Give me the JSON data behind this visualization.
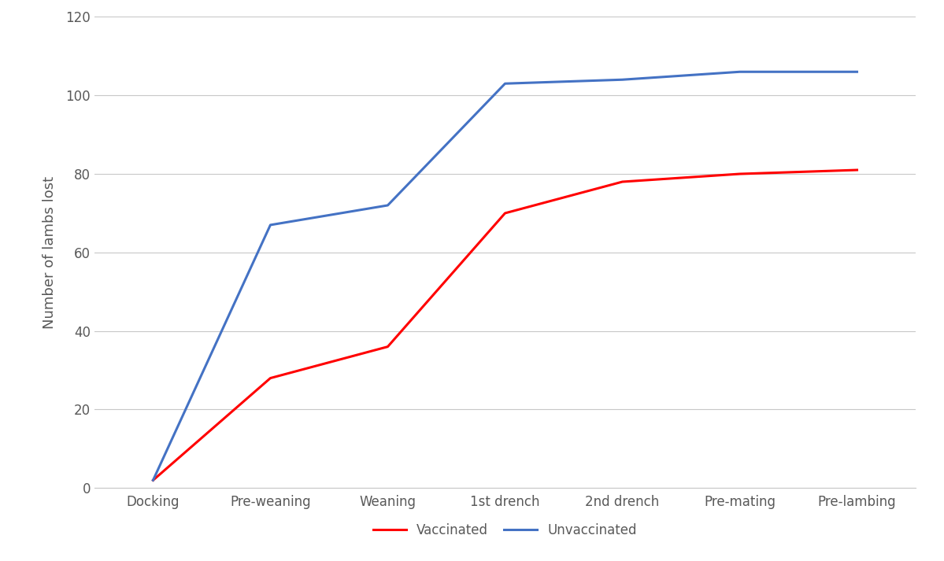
{
  "categories": [
    "Docking",
    "Pre-weaning",
    "Weaning",
    "1st drench",
    "2nd drench",
    "Pre-mating",
    "Pre-lambing"
  ],
  "vaccinated": [
    2,
    28,
    36,
    70,
    78,
    80,
    81
  ],
  "unvaccinated": [
    2,
    67,
    72,
    103,
    104,
    106,
    106
  ],
  "vaccinated_color": "#FF0000",
  "unvaccinated_color": "#4472C4",
  "ylabel": "Number of lambs lost",
  "ylim": [
    0,
    120
  ],
  "yticks": [
    0,
    20,
    40,
    60,
    80,
    100,
    120
  ],
  "legend_vaccinated": "Vaccinated",
  "legend_unvaccinated": "Unvaccinated",
  "line_width": 2.2,
  "background_color": "#FFFFFF",
  "grid_color": "#C8C8C8",
  "ylabel_fontsize": 13,
  "tick_fontsize": 12,
  "legend_fontsize": 12,
  "tick_color": "#595959"
}
